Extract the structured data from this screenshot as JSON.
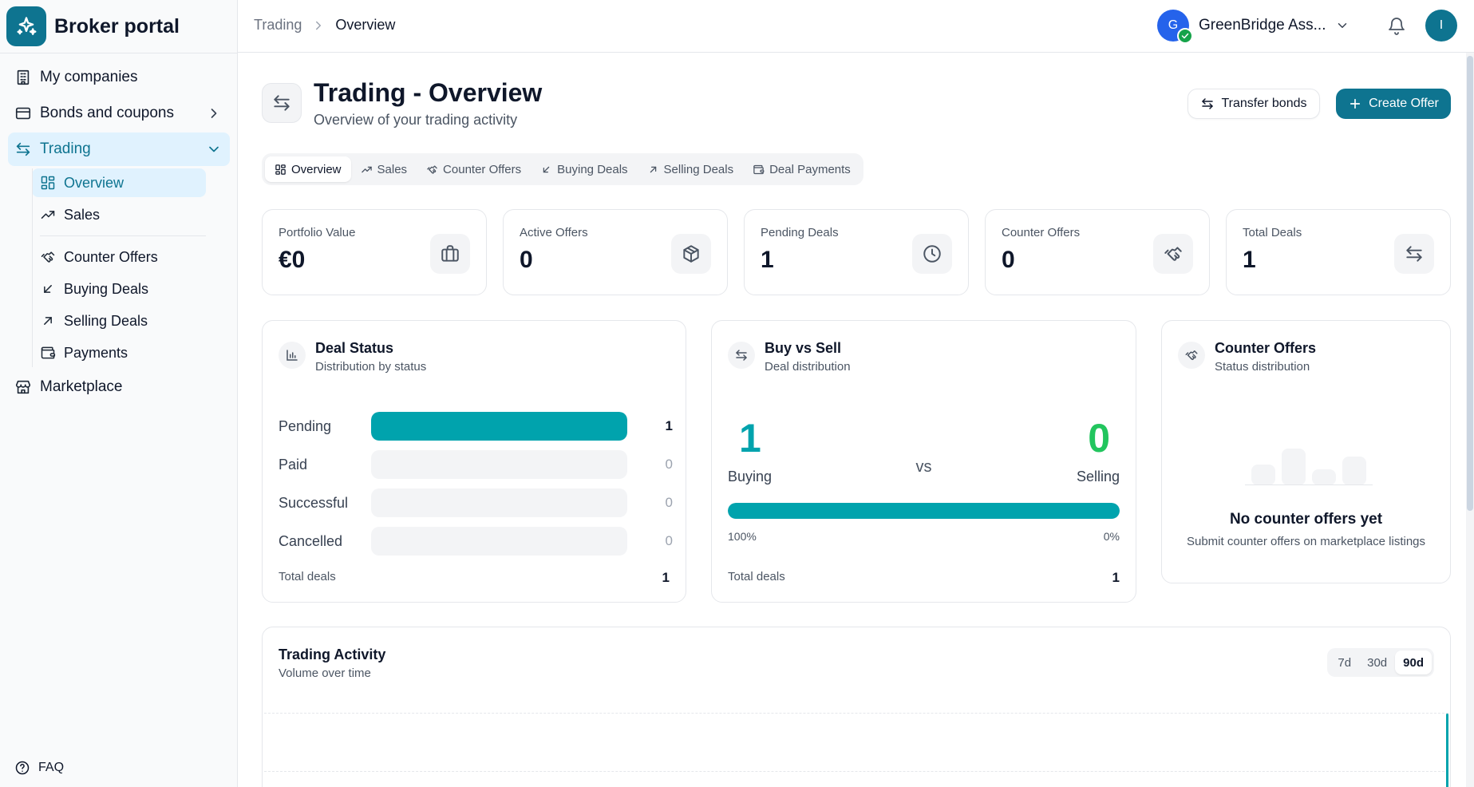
{
  "brand": {
    "name": "Broker portal",
    "icon": "sparkles-icon"
  },
  "sidebar": {
    "items": [
      {
        "label": "My companies",
        "icon": "building-icon"
      },
      {
        "label": "Bonds and coupons",
        "icon": "wallet-icon"
      },
      {
        "label": "Trading",
        "icon": "arrows-left-right-icon"
      },
      {
        "label": "Marketplace",
        "icon": "store-icon"
      }
    ],
    "trading_sub": [
      {
        "label": "Overview",
        "icon": "grid-icon"
      },
      {
        "label": "Sales",
        "icon": "trending-up-icon"
      },
      {
        "label": "Counter Offers",
        "icon": "handshake-icon"
      },
      {
        "label": "Buying Deals",
        "icon": "arrow-down-left-icon"
      },
      {
        "label": "Selling Deals",
        "icon": "arrow-up-right-icon"
      },
      {
        "label": "Payments",
        "icon": "wallet-icon"
      }
    ],
    "faq": "FAQ"
  },
  "topbar": {
    "breadcrumb": [
      "Trading",
      "Overview"
    ],
    "org_initial": "G",
    "org_name": "GreenBridge Ass...",
    "user_initial": "I"
  },
  "page": {
    "title": "Trading - Overview",
    "subtitle": "Overview of your trading activity",
    "transfer_label": "Transfer bonds",
    "create_label": "Create Offer"
  },
  "tabs": [
    "Overview",
    "Sales",
    "Counter Offers",
    "Buying Deals",
    "Selling Deals",
    "Deal Payments"
  ],
  "stats": [
    {
      "label": "Portfolio Value",
      "value": "€0",
      "icon": "briefcase-icon"
    },
    {
      "label": "Active Offers",
      "value": "0",
      "icon": "package-icon"
    },
    {
      "label": "Pending Deals",
      "value": "1",
      "icon": "clock-icon"
    },
    {
      "label": "Counter Offers",
      "value": "0",
      "icon": "handshake-icon"
    },
    {
      "label": "Total Deals",
      "value": "1",
      "icon": "arrows-left-right-icon"
    }
  ],
  "deal_status": {
    "title": "Deal Status",
    "subtitle": "Distribution by status",
    "rows": [
      {
        "label": "Pending",
        "count": "1",
        "fraction": 1
      },
      {
        "label": "Paid",
        "count": "0",
        "fraction": 0
      },
      {
        "label": "Successful",
        "count": "0",
        "fraction": 0
      },
      {
        "label": "Cancelled",
        "count": "0",
        "fraction": 0
      }
    ],
    "total_label": "Total deals",
    "total_value": "1"
  },
  "buy_sell": {
    "title": "Buy vs Sell",
    "subtitle": "Deal distribution",
    "buy_count": "1",
    "sell_count": "0",
    "buy_label": "Buying",
    "sell_label": "Selling",
    "vs": "vs",
    "buy_pct": "100%",
    "sell_pct": "0%",
    "buy_fraction": 1,
    "total_label": "Total deals",
    "total_value": "1"
  },
  "counter_offers": {
    "title": "Counter Offers",
    "subtitle": "Status distribution",
    "empty_title": "No counter offers yet",
    "empty_sub": "Submit counter offers on marketplace listings"
  },
  "activity": {
    "title": "Trading Activity",
    "subtitle": "Volume over time",
    "ranges": [
      "7d",
      "30d",
      "90d"
    ],
    "selected_range": "90d"
  },
  "colors": {
    "accent": "#0e7490",
    "teal": "#00a3ad",
    "green": "#22c55e",
    "active_bg": "#e0f2fe"
  }
}
